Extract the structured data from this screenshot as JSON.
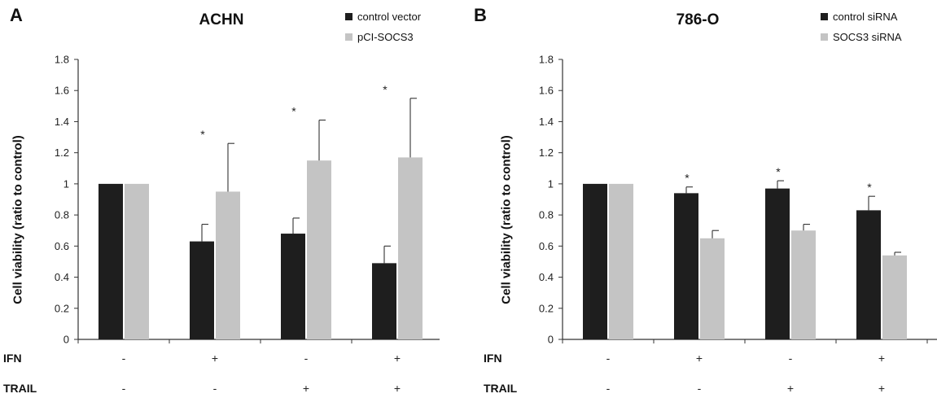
{
  "chart_data": [
    {
      "panel_letter": "A",
      "type": "bar",
      "title": "ACHN",
      "ylabel": "Cell viability (ratio to control)",
      "xlabel": "",
      "ylim": [
        0,
        1.8
      ],
      "yticks": [
        "0",
        "0.2",
        "0.4",
        "0.6",
        "0.8",
        "1",
        "1.2",
        "1.4",
        "1.6",
        "1.8"
      ],
      "row_labels": [
        "IFN",
        "TRAIL"
      ],
      "categories": [
        {
          "IFN": "-",
          "TRAIL": "-"
        },
        {
          "IFN": "+",
          "TRAIL": "-"
        },
        {
          "IFN": "-",
          "TRAIL": "+"
        },
        {
          "IFN": "+",
          "TRAIL": "+"
        }
      ],
      "series": [
        {
          "name": "control vector",
          "color": "#1e1e1e",
          "values": [
            1.0,
            0.63,
            0.68,
            0.49
          ],
          "errors": [
            0.0,
            0.11,
            0.1,
            0.11
          ]
        },
        {
          "name": "pCI-SOCS3",
          "color": "#c4c4c4",
          "values": [
            1.0,
            0.95,
            1.15,
            1.17
          ],
          "errors": [
            0.0,
            0.31,
            0.26,
            0.38
          ]
        }
      ],
      "significance": [
        "",
        "*",
        "*",
        "*"
      ],
      "legend_position": "top-right",
      "grid": false
    },
    {
      "panel_letter": "B",
      "type": "bar",
      "title": "786-O",
      "ylabel": "Cell viability (ratio to control)",
      "xlabel": "",
      "ylim": [
        0,
        1.8
      ],
      "yticks": [
        "0",
        "0.2",
        "0.4",
        "0.6",
        "0.8",
        "1",
        "1.2",
        "1.4",
        "1.6",
        "1.8"
      ],
      "row_labels": [
        "IFN",
        "TRAIL"
      ],
      "categories": [
        {
          "IFN": "-",
          "TRAIL": "-"
        },
        {
          "IFN": "+",
          "TRAIL": "-"
        },
        {
          "IFN": "-",
          "TRAIL": "+"
        },
        {
          "IFN": "+",
          "TRAIL": "+"
        }
      ],
      "series": [
        {
          "name": "control siRNA",
          "color": "#1e1e1e",
          "values": [
            1.0,
            0.94,
            0.97,
            0.83
          ],
          "errors": [
            0.0,
            0.04,
            0.05,
            0.09
          ]
        },
        {
          "name": "SOCS3 siRNA",
          "color": "#c4c4c4",
          "values": [
            1.0,
            0.65,
            0.7,
            0.54
          ],
          "errors": [
            0.0,
            0.05,
            0.04,
            0.02
          ]
        }
      ],
      "significance": [
        "",
        "*",
        "*",
        "*"
      ],
      "legend_position": "top-right",
      "grid": false
    }
  ]
}
